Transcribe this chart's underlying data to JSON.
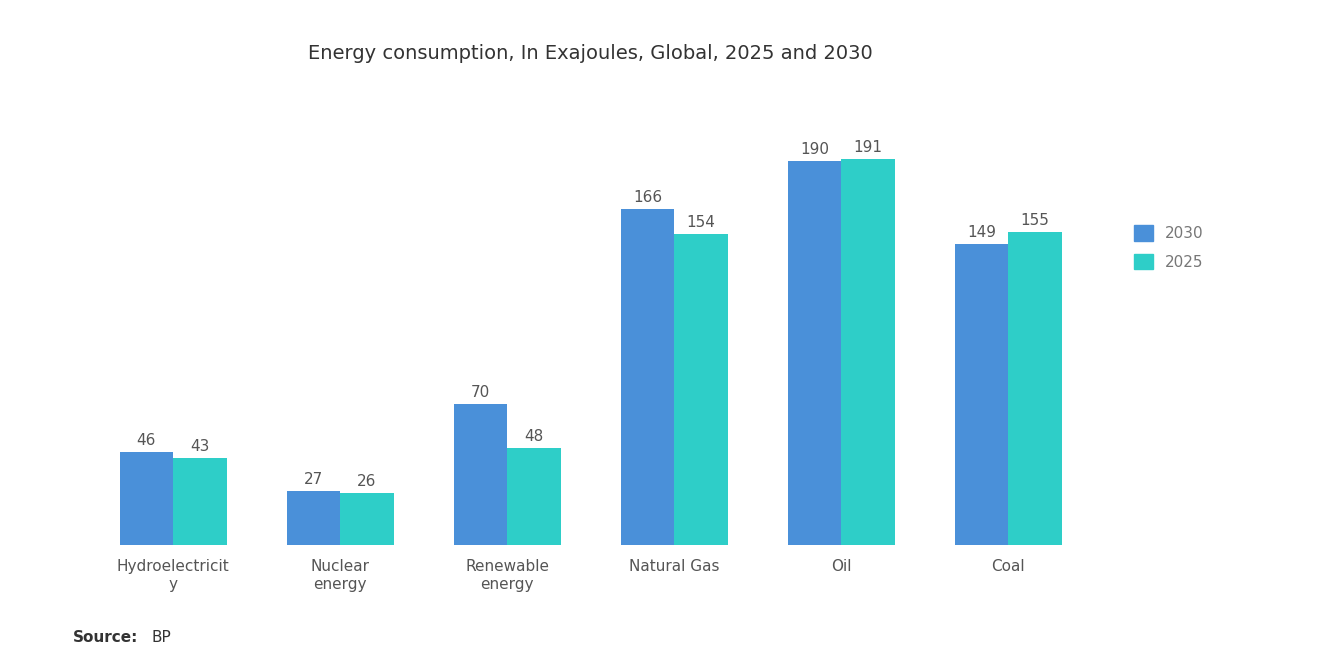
{
  "title": "Energy consumption, In Exajoules, Global, 2025 and 2030",
  "categories": [
    "Hydroelectricit\ny",
    "Nuclear\nenergy",
    "Renewable\nenergy",
    "Natural Gas",
    "Oil",
    "Coal"
  ],
  "values_2030": [
    46,
    27,
    70,
    166,
    190,
    149
  ],
  "values_2025": [
    43,
    26,
    48,
    154,
    191,
    155
  ],
  "color_2030": "#4A90D9",
  "color_2025": "#2ECEC8",
  "legend_labels": [
    "2030",
    "2025"
  ],
  "bar_width": 0.32,
  "background_color": "#ffffff",
  "title_fontsize": 14,
  "label_fontsize": 11,
  "tick_fontsize": 11,
  "annotation_fontsize": 11,
  "source_fontsize": 11,
  "ylim_max": 230
}
